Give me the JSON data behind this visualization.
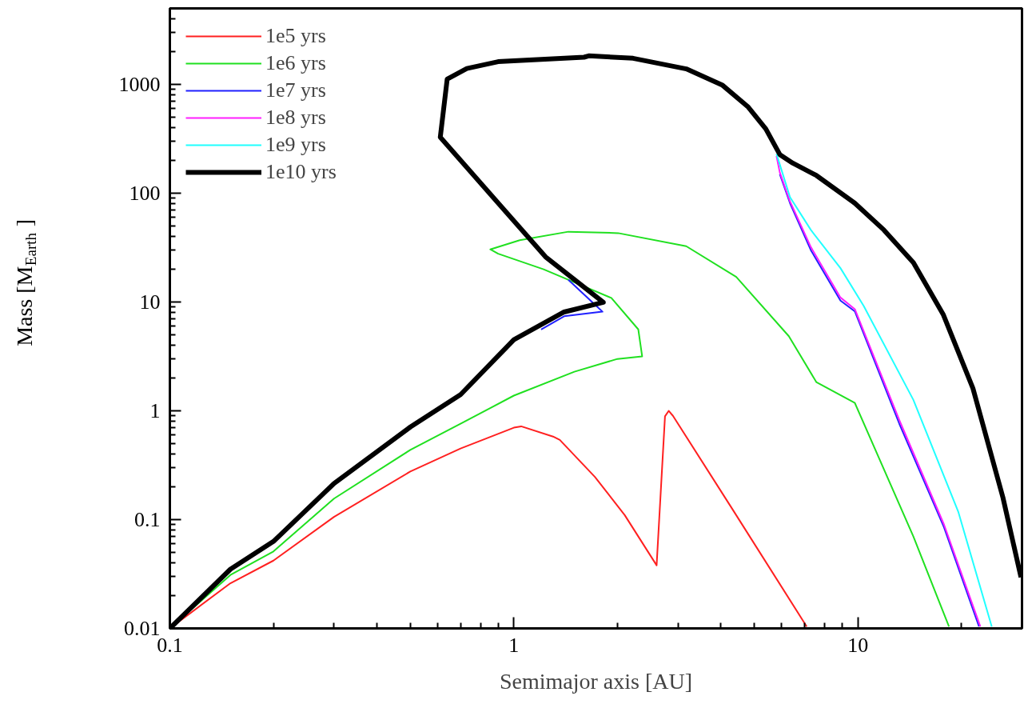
{
  "chart_data": {
    "type": "line",
    "xlabel": "Semimajor axis [AU]",
    "ylabel": "Mass [M$_{Earth}$]",
    "log": "xy",
    "legend": "top left",
    "xlim": [
      0.1,
      30
    ],
    "ylim": [
      0.01,
      5000
    ],
    "xticks": [
      0.1,
      1,
      10
    ],
    "yticks": [
      0.01,
      0.1,
      1,
      10,
      100,
      1000
    ],
    "series": [
      {
        "name": "1e5 yrs",
        "color": "#ff2020",
        "x": [
          0.1,
          0.15,
          0.2,
          0.3,
          0.5,
          0.7,
          1.0,
          1.05,
          1.3,
          1.36,
          1.72,
          2.1,
          2.6,
          2.75,
          2.82,
          2.9,
          4.27,
          7.1
        ],
        "values": [
          0.01,
          0.026,
          0.042,
          0.106,
          0.277,
          0.45,
          0.7,
          0.72,
          0.58,
          0.54,
          0.247,
          0.11,
          0.038,
          0.89,
          1.0,
          0.9,
          0.132,
          0.0104
        ]
      },
      {
        "name": "1e6 yrs",
        "color": "#20e020",
        "x": [
          0.1,
          0.15,
          0.2,
          0.3,
          0.5,
          0.7,
          1.0,
          1.5,
          2.0,
          2.36,
          2.3,
          1.92,
          1.22,
          0.9,
          0.854,
          1.04,
          1.44,
          2.01,
          3.17,
          4.43,
          6.3,
          7.57,
          9.8,
          14.5,
          18.4
        ],
        "values": [
          0.01,
          0.031,
          0.051,
          0.156,
          0.437,
          0.76,
          1.38,
          2.29,
          3.0,
          3.17,
          5.6,
          10.9,
          20,
          27.8,
          30.5,
          37,
          44.3,
          43,
          32.6,
          17,
          4.85,
          1.84,
          1.18,
          0.07,
          0.0104
        ]
      },
      {
        "name": "1e7 yrs",
        "color": "#2020ff",
        "x": [
          1.2,
          1.4,
          1.81,
          1.7,
          1.44,
          null,
          5.93,
          6.35,
          7.3,
          8.9,
          9.8,
          13.2,
          17.8,
          22.5
        ],
        "values": [
          5.6,
          7.4,
          8.15,
          9.8,
          16,
          null,
          150,
          81,
          30,
          10.3,
          8.2,
          0.76,
          0.085,
          0.0104
        ]
      },
      {
        "name": "1e8 yrs",
        "color": "#ff20ff",
        "x": [
          5.8,
          5.93,
          6.35,
          7.3,
          8.9,
          9.8,
          13.2,
          17.8,
          22.7
        ],
        "values": [
          220,
          155,
          84,
          32,
          11,
          8.6,
          0.82,
          0.09,
          0.0104
        ]
      },
      {
        "name": "1e9 yrs",
        "color": "#20ffff",
        "x": [
          5.8,
          6.35,
          7.3,
          8.9,
          10.4,
          14.5,
          19.6,
          24.5
        ],
        "values": [
          230,
          92,
          46,
          20.5,
          9.2,
          1.26,
          0.117,
          0.0104
        ]
      },
      {
        "name": "1e10 yrs",
        "color": "#000000",
        "x": [
          0.1,
          0.15,
          0.2,
          0.3,
          0.5,
          0.7,
          1.0,
          1.4,
          1.82,
          1.236,
          0.611,
          0.64,
          0.73,
          0.9,
          1.6,
          1.65,
          2.22,
          3.17,
          4.03,
          4.8,
          5.4,
          5.93,
          6.47,
          7.57,
          9.8,
          11.9,
          14.5,
          17.7,
          21.6,
          26.4,
          29.8
        ],
        "values": [
          0.01,
          0.035,
          0.063,
          0.215,
          0.71,
          1.41,
          4.5,
          8.1,
          9.95,
          26,
          327,
          1120,
          1400,
          1620,
          1780,
          1830,
          1740,
          1390,
          990,
          620,
          390,
          227,
          189,
          146,
          81,
          46,
          23,
          7.7,
          1.61,
          0.16,
          0.0295
        ]
      }
    ]
  }
}
